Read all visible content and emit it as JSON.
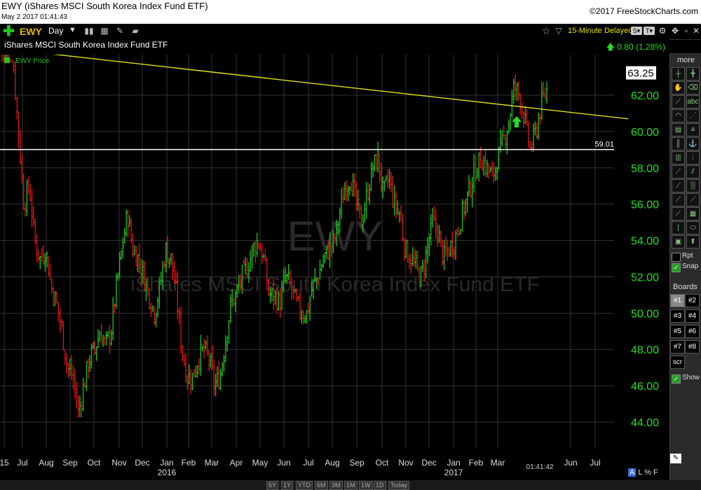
{
  "title": {
    "main": "EWY (iShares MSCI South Korea Index Fund ETF)",
    "datetime": "May 2 2017 01:41:43",
    "copyright": "©2017 FreeStockCharts.com"
  },
  "toolbar": {
    "symbol": "EWY",
    "period": "Day",
    "delayed_label": "15-Minute Delayed",
    "colors": {
      "add": "#21c521",
      "symbol": "#e5b800",
      "delayed": "#e5e000"
    }
  },
  "info": {
    "security_name": "iShares MSCI South Korea Index Fund ETF",
    "change": "0.80 (1.28%)",
    "change_color": "#21e021"
  },
  "chart_data": {
    "type": "ohlc",
    "series_label": "EWY Price",
    "watermark_symbol": "EWY",
    "watermark_name": "iShares MSCI South Korea Index Fund ETF",
    "last_price": "63.25",
    "ylim": [
      42.6,
      64.4
    ],
    "y_ticks": [
      "62.00",
      "60.00",
      "58.00",
      "56.00",
      "54.00",
      "52.00",
      "50.00",
      "48.00",
      "46.00",
      "44.00"
    ],
    "x_ticks": [
      "15",
      "Jul",
      "Aug",
      "Sep",
      "Oct",
      "Nov",
      "Dec",
      "Jan",
      "Feb",
      "Mar",
      "Apr",
      "May",
      "Jun",
      "Jul",
      "Aug",
      "Sep",
      "Oct",
      "Nov",
      "Dec",
      "Jan",
      "Feb",
      "Mar",
      "Jun",
      "Jul"
    ],
    "year_labels": [
      "2016",
      "2017"
    ],
    "time_label": "01:41:42",
    "horizontal_line": {
      "value": 59.01,
      "label": "59.01"
    },
    "trendline": {
      "start_value": 64.3,
      "end_value": 60.7
    },
    "price_path": [
      66.5,
      66.0,
      64.0,
      60.0,
      56.0,
      57.0,
      54.0,
      53.0,
      53.5,
      51.5,
      50.5,
      49.0,
      47.0,
      46.5,
      44.5,
      46.0,
      47.5,
      48.0,
      49.0,
      48.2,
      49.0,
      51.5,
      53.5,
      55.5,
      53.5,
      53.0,
      52.0,
      51.0,
      50.0,
      51.5,
      53.5,
      53.0,
      51.0,
      48.0,
      46.5,
      46.5,
      47.5,
      48.0,
      47.5,
      46.0,
      46.5,
      48.5,
      50.5,
      51.0,
      52.0,
      52.5,
      53.5,
      54.0,
      53.0,
      51.0,
      51.0,
      50.5,
      52.0,
      51.5,
      50.5,
      50.0,
      50.0,
      51.5,
      52.0,
      53.0,
      53.5,
      54.0,
      55.5,
      57.0,
      57.5,
      56.0,
      55.0,
      56.5,
      58.0,
      58.5,
      56.5,
      57.5,
      56.0,
      55.5,
      53.5,
      53.0,
      52.5,
      52.0,
      53.5,
      55.0,
      54.5,
      53.0,
      53.5,
      54.0,
      55.0,
      56.0,
      57.0,
      58.0,
      58.5,
      58.0,
      57.5,
      58.5,
      59.5,
      60.5,
      62.5,
      62.0,
      60.5,
      59.0,
      60.0,
      61.5,
      62.3
    ],
    "colors": {
      "up": "#21c521",
      "down": "#e01818",
      "trendline": "#e0e020",
      "hline": "#ffffff",
      "grid": "#333333",
      "axis_text": "#21e021"
    }
  },
  "tools": [
    "cursor-tool",
    "crosshair-tool",
    "hand-tool",
    "eraser-tool",
    "line-tool",
    "text-tool",
    "arc-tool",
    "fan-tool",
    "channel-tool",
    "retracement-tool",
    "vertical-lines-tool",
    "anchor-tool",
    "cycle-lines-tool",
    "gann-tool",
    "speed-lines-tool",
    "parallel-lines-tool",
    "regression-tool",
    "stdev-channel-tool",
    "trend-fan-tool",
    "fib-fan-tool",
    "arrow-line-tool",
    "square-tool",
    "vertical-bar-tool",
    "ellipse-tool",
    "color-box-tool",
    "up-arrow-tool"
  ],
  "panel": {
    "more": "more",
    "rpt": "Rpt",
    "snap": "Snap",
    "boards_title": "Boards",
    "boards": [
      "#1",
      "#2",
      "#3",
      "#4",
      "#5",
      "#6",
      "#7",
      "#8"
    ],
    "scr": "scr",
    "show": "Show"
  },
  "ranges": [
    "5Y",
    "1Y",
    "YTD",
    "6M",
    "3M",
    "1M",
    "1W",
    "1D",
    "Today"
  ],
  "footer": {
    "a": "A",
    "l": "L",
    "pct": "%",
    "f": "F"
  }
}
